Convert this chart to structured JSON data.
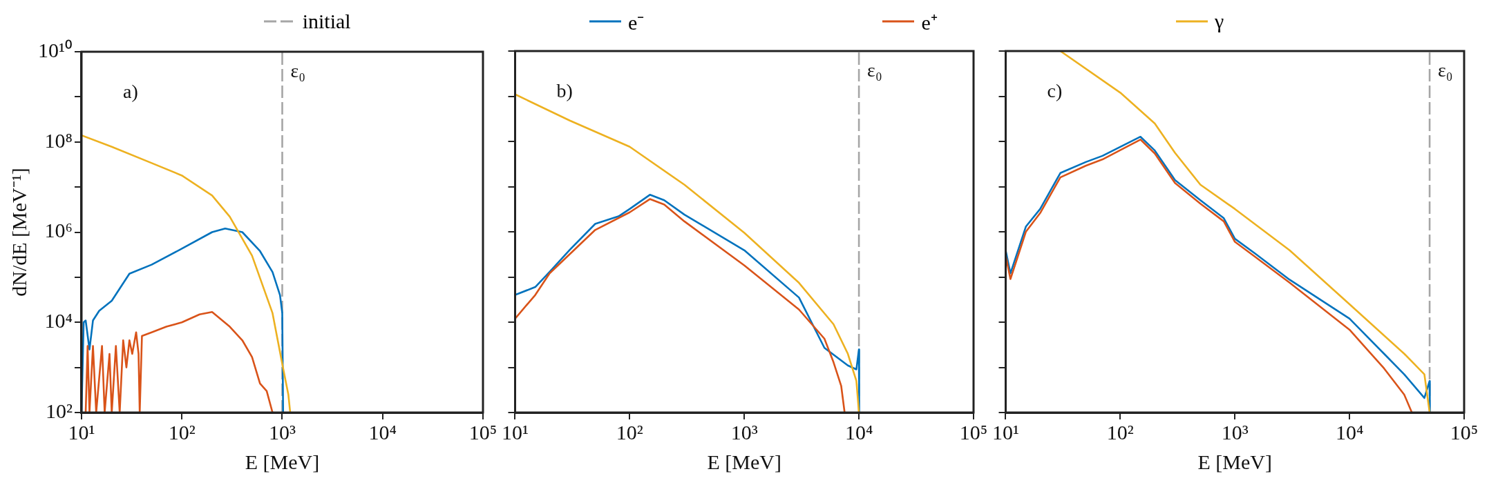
{
  "chart_data": [
    {
      "type": "line",
      "xlabel": "E [MeV]",
      "ylabel": "dN/dE [MeV⁻¹]",
      "log": "xy",
      "legend": "top",
      "grid": false,
      "xlim": [
        10,
        100000
      ],
      "ylim": [
        100,
        10000000000
      ],
      "xticks": [
        {
          "value": 10,
          "label": "10¹"
        },
        {
          "value": 100,
          "label": "10²"
        },
        {
          "value": 1000,
          "label": "10³"
        },
        {
          "value": 10000,
          "label": "10⁴"
        },
        {
          "value": 100000,
          "label": "10⁵"
        }
      ],
      "yticks": [
        {
          "value": 100,
          "label": "10²"
        },
        {
          "value": 1000,
          "label": null
        },
        {
          "value": 10000,
          "label": "10⁴"
        },
        {
          "value": 100000,
          "label": null
        },
        {
          "value": 1000000,
          "label": "10⁶"
        },
        {
          "value": 10000000,
          "label": null
        },
        {
          "value": 100000000,
          "label": "10⁸"
        },
        {
          "value": 1000000000,
          "label": null
        },
        {
          "value": 10000000000,
          "label": "10¹⁰"
        }
      ],
      "annotations": [
        "a)",
        "ε₀"
      ],
      "ref_lines": [
        {
          "axis": "x",
          "value": 1000,
          "label": "initial",
          "color": "#a6a6a6",
          "line_style": "dashed"
        }
      ],
      "series": [
        {
          "name": "e⁻",
          "color": "#0072bd",
          "x": [
            10,
            10.5,
            11,
            12,
            13,
            15,
            20,
            30,
            50,
            100,
            200,
            270,
            400,
            600,
            800,
            950,
            1000,
            1020
          ],
          "values": [
            100,
            10000,
            11000,
            2500,
            11000,
            18000,
            30000,
            120000,
            190000,
            430000,
            1000000,
            1200000,
            1000000,
            380000,
            130000,
            40000,
            16000,
            100
          ]
        },
        {
          "name": "e⁺",
          "color": "#d95319",
          "x": [
            11,
            11.5,
            12,
            13,
            14,
            16,
            17,
            19,
            20,
            22,
            24,
            26,
            28,
            30,
            32,
            35,
            37,
            38,
            40,
            50,
            70,
            100,
            150,
            200,
            300,
            400,
            500,
            600,
            700,
            800
          ],
          "values": [
            100,
            3000,
            100,
            3000,
            100,
            3000,
            100,
            2000,
            100,
            3000,
            100,
            4000,
            1000,
            4000,
            2000,
            6000,
            2000,
            100,
            5000,
            6000,
            8000,
            10000,
            15000,
            17000,
            8000,
            4000,
            1700,
            440,
            300,
            100
          ]
        },
        {
          "name": "γ",
          "color": "#edb120",
          "x": [
            10,
            20,
            50,
            100,
            200,
            300,
            500,
            800,
            1000,
            1150,
            1200
          ],
          "values": [
            140000000,
            78000000,
            34000000,
            18000000,
            6500000,
            2200000,
            300000,
            16000,
            1200,
            250,
            100
          ]
        }
      ]
    },
    {
      "type": "line",
      "xlabel": "E [MeV]",
      "log": "xy",
      "grid": false,
      "tick_labels": "x",
      "xlim": [
        10,
        100000
      ],
      "ylim": [
        100,
        10000000000
      ],
      "xticks": [
        {
          "value": 10,
          "label": "10¹"
        },
        {
          "value": 100,
          "label": "10²"
        },
        {
          "value": 1000,
          "label": "10³"
        },
        {
          "value": 10000,
          "label": "10⁴"
        },
        {
          "value": 100000,
          "label": "10⁵"
        }
      ],
      "yticks": [
        100,
        1000,
        10000,
        100000,
        1000000,
        10000000,
        100000000,
        1000000000,
        10000000000
      ],
      "annotations": [
        "b)",
        "ε₀"
      ],
      "ref_lines": [
        {
          "axis": "x",
          "value": 10000,
          "color": "#a6a6a6",
          "line_style": "dashed"
        }
      ],
      "series": [
        {
          "color": "#0072bd",
          "x": [
            10,
            15,
            20,
            30,
            50,
            80,
            100,
            150,
            200,
            300,
            1000,
            3000,
            5000,
            8000,
            9500,
            10000,
            10050
          ],
          "values": [
            40000,
            60000,
            130000,
            400000,
            1500000,
            2200000,
            3200000,
            6600000,
            5000000,
            2400000,
            390000,
            35000,
            2700,
            1100,
            900,
            2500,
            100
          ]
        },
        {
          "color": "#d95319",
          "x": [
            10,
            15,
            20,
            50,
            100,
            150,
            200,
            300,
            1000,
            3000,
            5000,
            6000,
            7000,
            7500
          ],
          "values": [
            12000,
            40000,
            120000,
            1100000,
            2700000,
            5300000,
            4000000,
            1700000,
            180000,
            19000,
            4300,
            1300,
            390,
            100
          ]
        },
        {
          "color": "#edb120",
          "x": [
            10,
            30,
            100,
            300,
            1000,
            3000,
            6000,
            8000,
            9500,
            10000
          ],
          "values": [
            1100000000,
            290000000,
            76000000,
            11000000,
            950000,
            74000,
            9000,
            2000,
            500,
            100
          ]
        }
      ]
    },
    {
      "type": "line",
      "xlabel": "E [MeV]",
      "log": "xy",
      "grid": false,
      "tick_labels": "x",
      "xlim": [
        10,
        100000
      ],
      "ylim": [
        100,
        10000000000
      ],
      "xticks": [
        {
          "value": 10,
          "label": "10¹"
        },
        {
          "value": 100,
          "label": "10²"
        },
        {
          "value": 1000,
          "label": "10³"
        },
        {
          "value": 10000,
          "label": "10⁴"
        },
        {
          "value": 100000,
          "label": "10⁵"
        }
      ],
      "yticks": [
        100,
        1000,
        10000,
        100000,
        1000000,
        10000000,
        100000000,
        1000000000,
        10000000000
      ],
      "annotations": [
        "c)",
        "ε₀"
      ],
      "ref_lines": [
        {
          "axis": "x",
          "value": 50000,
          "color": "#a6a6a6",
          "line_style": "dashed"
        }
      ],
      "series": [
        {
          "color": "#0072bd",
          "x": [
            10,
            11,
            15,
            20,
            30,
            50,
            70,
            100,
            150,
            200,
            300,
            500,
            800,
            1000,
            1500,
            3000,
            10000,
            20000,
            30000,
            45000,
            50000,
            50200
          ],
          "values": [
            390000,
            120000,
            1300000,
            3200000,
            20000000,
            35000000,
            48000000,
            76000000,
            127000000,
            63000000,
            14000000,
            5000000,
            2000000,
            700000,
            330000,
            87000,
            12000,
            2000,
            700,
            210,
            500,
            100
          ]
        },
        {
          "color": "#d95319",
          "x": [
            10,
            11,
            15,
            20,
            30,
            50,
            70,
            100,
            150,
            200,
            300,
            500,
            800,
            1000,
            1500,
            3000,
            10000,
            20000,
            30000,
            35000
          ],
          "values": [
            300000,
            90000,
            1000000,
            2600000,
            16000000,
            29000000,
            40000000,
            64000000,
            110000000,
            54000000,
            12000000,
            4200000,
            1700000,
            600000,
            280000,
            75000,
            6800,
            950,
            250,
            100
          ]
        },
        {
          "color": "#edb120",
          "x": [
            30,
            100,
            200,
            300,
            500,
            1000,
            3000,
            10000,
            30000,
            45000,
            50000
          ],
          "values": [
            10000000000,
            1200000000,
            250000000,
            56000000,
            11000000,
            3200000,
            390000,
            25000,
            2000,
            700,
            100
          ]
        }
      ]
    }
  ]
}
